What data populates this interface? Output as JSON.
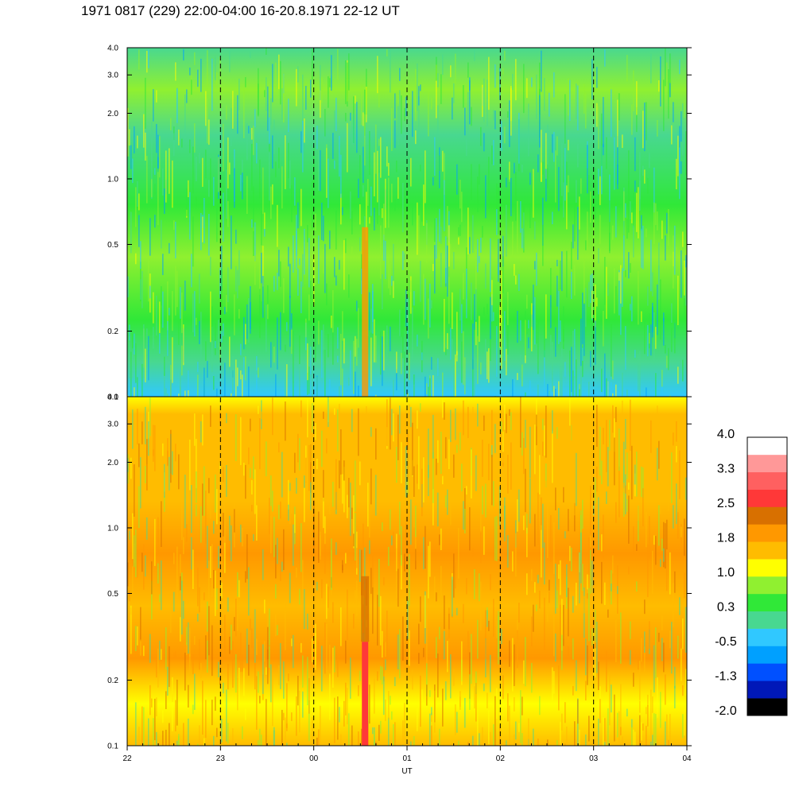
{
  "title": "1971 0817 (229) 22:00-04:00 16-20.8.1971  22-12 UT",
  "chart_data": {
    "type": "heatmap",
    "xlabel": "UT",
    "x_ticks": [
      "22",
      "23",
      "00",
      "01",
      "02",
      "03",
      "04"
    ],
    "y_scale": "log",
    "y_range": [
      0.1,
      4.0
    ],
    "y_ticks": [
      "0.1",
      "0.2",
      "0.5",
      "1.0",
      "2.0",
      "3.0",
      "4.0"
    ],
    "vertical_dashed_lines_at": [
      "23",
      "00",
      "01",
      "02",
      "03"
    ],
    "panels": [
      {
        "name": "upper",
        "dominant_colors": [
          "green",
          "cyan",
          "yellow-green"
        ],
        "feature_band": {
          "x_hour_offset": 2.55,
          "color": "orange"
        }
      },
      {
        "name": "lower",
        "dominant_colors": [
          "orange",
          "yellow",
          "dark-orange"
        ],
        "feature_band": {
          "x_hour_offset": 2.55,
          "color": "red"
        }
      }
    ],
    "colorbar": {
      "labels": [
        "4.0",
        "3.3",
        "2.5",
        "1.8",
        "1.0",
        "0.3",
        "-0.5",
        "-1.3",
        "-2.0"
      ],
      "colors": [
        "#000000",
        "#0018b8",
        "#0050ff",
        "#00a0ff",
        "#30c8ff",
        "#48d890",
        "#30e838",
        "#90f030",
        "#ffff00",
        "#ffbc00",
        "#ff9800",
        "#d87000",
        "#ff3838",
        "#ff6060",
        "#ff9898",
        "#ffffff"
      ]
    }
  }
}
